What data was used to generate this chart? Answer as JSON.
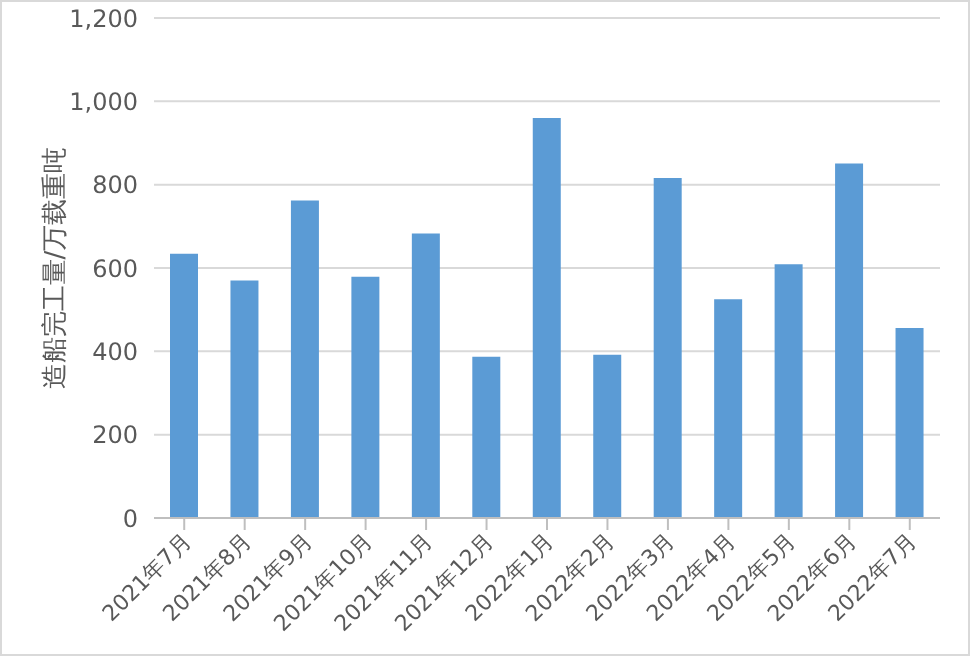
{
  "chart_data": {
    "type": "bar",
    "ylabel": "造船完工量/万载重吨",
    "categories": [
      "2021年7月",
      "2021年8月",
      "2021年9月",
      "2021年10月",
      "2021年11月",
      "2021年12月",
      "2022年1月",
      "2022年2月",
      "2022年3月",
      "2022年4月",
      "2022年5月",
      "2022年6月",
      "2022年7月"
    ],
    "values": [
      634,
      570,
      762,
      579,
      683,
      387,
      960,
      392,
      816,
      525,
      609,
      851,
      456
    ],
    "color": "#5b9bd5",
    "ylim": [
      0,
      1200
    ],
    "yticks": [
      {
        "value": 0,
        "label": "0"
      },
      {
        "value": 200,
        "label": "200"
      },
      {
        "value": 400,
        "label": "400"
      },
      {
        "value": 600,
        "label": "600"
      },
      {
        "value": 800,
        "label": "800"
      },
      {
        "value": 1000,
        "label": "1,000"
      },
      {
        "value": 1200,
        "label": "1,200"
      }
    ],
    "grid": "y"
  }
}
